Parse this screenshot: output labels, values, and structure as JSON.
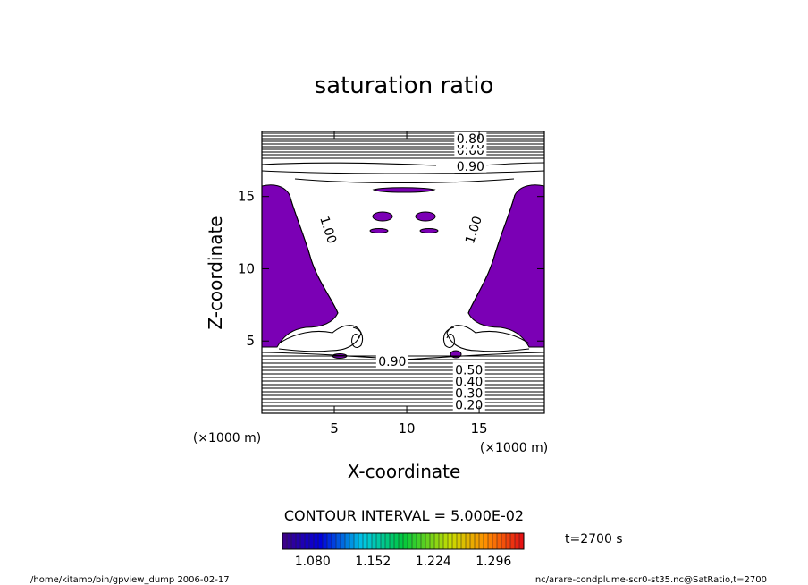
{
  "chart_data": {
    "type": "contour",
    "title": "saturation ratio",
    "xlabel": "X-coordinate",
    "ylabel": "Z-coordinate",
    "x_unit": "(×1000 m)",
    "y_unit": "(×1000 m)",
    "xlim": [
      0,
      19.5
    ],
    "ylim": [
      0,
      19.5
    ],
    "x_ticks": [
      5,
      10,
      15
    ],
    "y_ticks": [
      5,
      10,
      15
    ],
    "contour_interval_text": "CONTOUR INTERVAL = 5.000E-02",
    "contour_labels": [
      {
        "text": "0.90",
        "x": 14.4,
        "y": 17.1
      },
      {
        "text": "1.00",
        "x": 4.6,
        "y": 12.7,
        "rotate": 72
      },
      {
        "text": "1.00",
        "x": 14.6,
        "y": 12.7,
        "rotate": -72
      },
      {
        "text": "0.90",
        "x": 9.0,
        "y": 3.6
      },
      {
        "text": "0.20",
        "x": 14.3,
        "y": 0.6
      },
      {
        "text": "0.30",
        "x": 14.3,
        "y": 1.4
      },
      {
        "text": "0.40",
        "x": 14.3,
        "y": 2.2
      },
      {
        "text": "0.50",
        "x": 14.3,
        "y": 3.0
      },
      {
        "text": "0.60",
        "x": 14.4,
        "y": 18.2
      },
      {
        "text": "0.70",
        "x": 14.4,
        "y": 18.6
      },
      {
        "text": "0.80",
        "x": 14.4,
        "y": 19.0
      }
    ],
    "shade_color": "#7b00b5",
    "colorbar": {
      "ticks": [
        "1.080",
        "1.152",
        "1.224",
        "1.296"
      ],
      "min": 1.044,
      "max": 1.332
    },
    "time_label": "t=2700 s"
  },
  "footer": {
    "left": "/home/kitamo/bin/gpview_dump  2006-02-17",
    "right": "nc/arare-condplume-scr0-st35.nc@SatRatio,t=2700"
  }
}
